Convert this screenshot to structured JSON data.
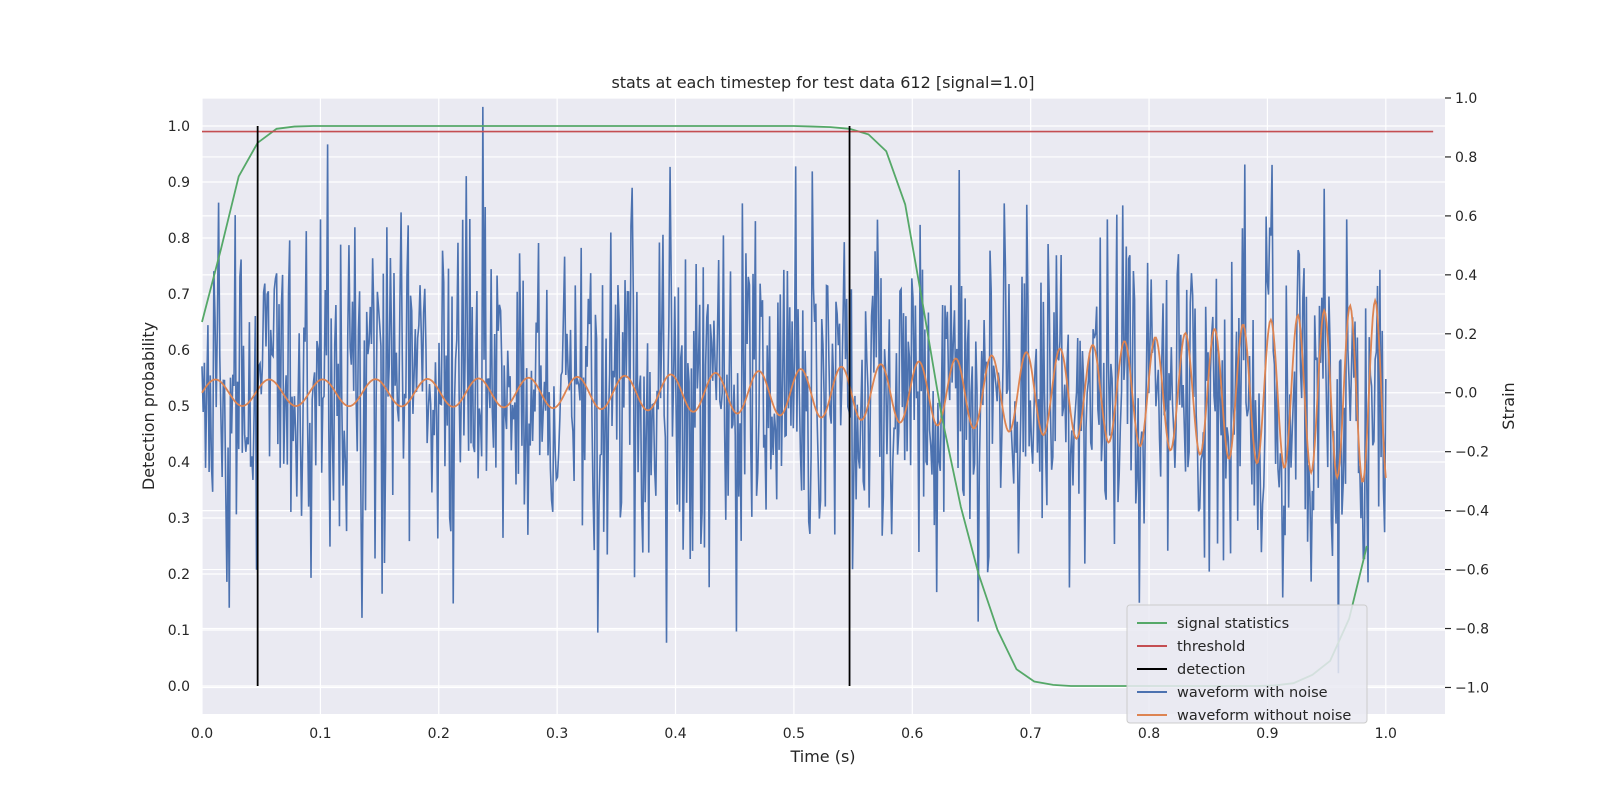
{
  "chart_data": {
    "type": "line",
    "title": "stats at each timestep for test data 612 [signal=1.0]",
    "xlabel": "Time (s)",
    "ylabel": "Detection probability",
    "y2label": "Strain",
    "xlim": [
      0.0,
      1.05
    ],
    "ylim": [
      -0.05,
      1.05
    ],
    "y2lim": [
      -1.09,
      1.0
    ],
    "xticks": [
      "0.0",
      "0.1",
      "0.2",
      "0.3",
      "0.4",
      "0.5",
      "0.6",
      "0.7",
      "0.8",
      "0.9",
      "1.0"
    ],
    "yticks": [
      "0.0",
      "0.1",
      "0.2",
      "0.3",
      "0.4",
      "0.5",
      "0.6",
      "0.7",
      "0.8",
      "0.9",
      "1.0"
    ],
    "y2ticks": [
      "−1.0",
      "−0.8",
      "−0.6",
      "−0.4",
      "−0.2",
      "0.0",
      "0.2",
      "0.4",
      "0.6",
      "0.8",
      "1.0"
    ],
    "grid": true,
    "legend_position": "lower-right",
    "threshold": 0.99,
    "detections": [
      0.047,
      0.547
    ],
    "signal_statistics": {
      "name": "signal statistics",
      "color": "#55a868",
      "x": [
        0.0,
        0.016,
        0.031,
        0.047,
        0.063,
        0.078,
        0.094,
        0.109,
        0.125,
        0.5,
        0.516,
        0.531,
        0.547,
        0.563,
        0.578,
        0.594,
        0.609,
        0.625,
        0.641,
        0.656,
        0.672,
        0.688,
        0.703,
        0.719,
        0.734,
        0.75,
        0.766,
        0.781,
        0.797,
        0.813,
        0.828,
        0.844,
        0.859,
        0.875,
        0.891,
        0.906,
        0.922,
        0.938,
        0.953,
        0.969,
        0.984
      ],
      "y": [
        0.65,
        0.78,
        0.91,
        0.97,
        0.995,
        0.999,
        1.0,
        1.0,
        1.0,
        1.0,
        0.999,
        0.998,
        0.995,
        0.985,
        0.955,
        0.86,
        0.68,
        0.48,
        0.32,
        0.2,
        0.1,
        0.03,
        0.008,
        0.002,
        0.0,
        0.0,
        0.0,
        0.0,
        0.0,
        0.0,
        0.0,
        0.0,
        0.0,
        0.0,
        0.0,
        0.001,
        0.005,
        0.02,
        0.045,
        0.12,
        0.25
      ]
    },
    "waveform_without_noise": {
      "name": "waveform without noise",
      "color": "#dd8452",
      "t0": 0.0,
      "t1": 1.0,
      "f_start": 22,
      "f_end": 48,
      "amp_start": 0.045,
      "amp_end": 0.32
    },
    "waveform_with_noise": {
      "name": "waveform with noise",
      "color": "#4c72b0",
      "samples": 1000,
      "noise_sigma": 0.3,
      "seed": 612
    },
    "legend": [
      {
        "label": "signal statistics",
        "color": "#55a868"
      },
      {
        "label": "threshold",
        "color": "#c44e52"
      },
      {
        "label": "detection",
        "color": "#000000"
      },
      {
        "label": "waveform with noise",
        "color": "#4c72b0"
      },
      {
        "label": "waveform without noise",
        "color": "#dd8452"
      }
    ],
    "colors": {
      "plot_background": "#eaeaf2",
      "grid": "#ffffff",
      "threshold": "#c44e52",
      "detection": "#000000"
    }
  }
}
